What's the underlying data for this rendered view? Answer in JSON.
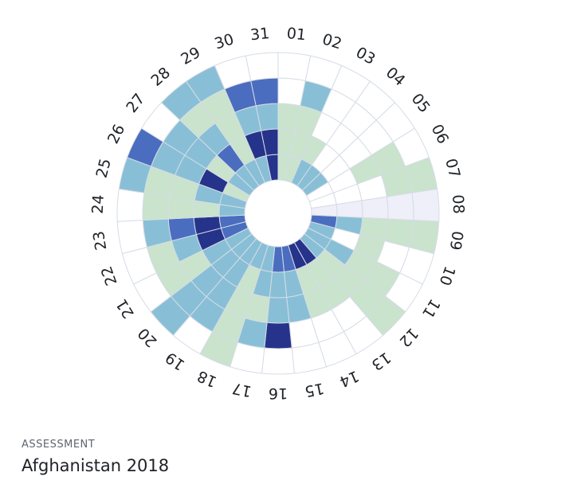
{
  "chart_data": {
    "type": "radial-heatmap",
    "title": "",
    "categories": [
      "01",
      "02",
      "03",
      "04",
      "05",
      "06",
      "07",
      "08",
      "09",
      "10",
      "11",
      "12",
      "13",
      "14",
      "15",
      "16",
      "17",
      "18",
      "19",
      "20",
      "21",
      "22",
      "23",
      "24",
      "25",
      "26",
      "27",
      "28",
      "29",
      "30",
      "31"
    ],
    "levels": [
      "empty",
      "very light",
      "light",
      "medium",
      "dark",
      "very dark"
    ],
    "level_colors": [
      "#ffffff",
      "#eeeff8",
      "#c9e3cd",
      "#88bfd6",
      "#4a6dbf",
      "#26338a"
    ],
    "rings": 5,
    "values": [
      [
        2,
        2,
        2,
        0,
        0
      ],
      [
        2,
        2,
        2,
        3,
        0
      ],
      [
        3,
        2,
        0,
        0,
        0
      ],
      [
        3,
        0,
        0,
        0,
        0
      ],
      [
        3,
        0,
        0,
        0,
        0
      ],
      [
        0,
        0,
        2,
        2,
        0
      ],
      [
        0,
        0,
        0,
        2,
        2
      ],
      [
        1,
        1,
        1,
        1,
        1
      ],
      [
        4,
        3,
        2,
        2,
        2
      ],
      [
        3,
        0,
        2,
        0,
        0
      ],
      [
        3,
        3,
        2,
        2,
        0
      ],
      [
        3,
        2,
        2,
        2,
        2
      ],
      [
        5,
        2,
        2,
        0,
        0
      ],
      [
        5,
        2,
        2,
        0,
        0
      ],
      [
        4,
        3,
        3,
        0,
        0
      ],
      [
        4,
        3,
        3,
        5,
        0
      ],
      [
        3,
        3,
        2,
        3,
        0
      ],
      [
        3,
        2,
        2,
        2,
        2
      ],
      [
        3,
        3,
        3,
        3,
        0
      ],
      [
        3,
        3,
        3,
        3,
        3
      ],
      [
        3,
        3,
        2,
        2,
        0
      ],
      [
        4,
        5,
        3,
        2,
        0
      ],
      [
        4,
        5,
        4,
        3,
        0
      ],
      [
        3,
        2,
        2,
        2,
        0
      ],
      [
        3,
        3,
        2,
        2,
        3
      ],
      [
        2,
        5,
        3,
        3,
        4
      ],
      [
        3,
        2,
        3,
        3,
        0
      ],
      [
        3,
        4,
        3,
        2,
        3
      ],
      [
        3,
        2,
        2,
        2,
        3
      ],
      [
        3,
        5,
        3,
        4,
        0
      ],
      [
        5,
        5,
        3,
        4,
        0
      ]
    ]
  },
  "caption": {
    "kicker": "ASSESSMENT",
    "title": "Afghanistan 2018"
  }
}
